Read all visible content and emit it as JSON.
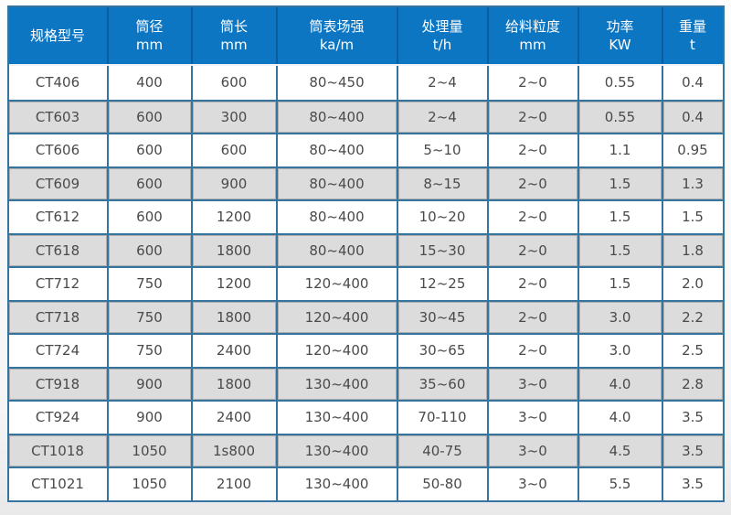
{
  "table": {
    "name": "specification-table",
    "columns": [
      {
        "label": "规格型号",
        "unit": ""
      },
      {
        "label": "筒径",
        "unit": "mm"
      },
      {
        "label": "筒长",
        "unit": "mm"
      },
      {
        "label": "筒表场强",
        "unit": "ka/m"
      },
      {
        "label": "处理量",
        "unit": "t/h"
      },
      {
        "label": "给料粒度",
        "unit": "mm"
      },
      {
        "label": "功率",
        "unit": "KW"
      },
      {
        "label": "重量",
        "unit": "t"
      }
    ],
    "rows": [
      [
        "CT406",
        "400",
        "600",
        "80~450",
        "2~4",
        "2~0",
        "0.55",
        "0.4"
      ],
      [
        "CT603",
        "600",
        "300",
        "80~400",
        "2~4",
        "2~0",
        "0.55",
        "0.4"
      ],
      [
        "CT606",
        "600",
        "600",
        "80~400",
        "5~10",
        "2~0",
        "1.1",
        "0.95"
      ],
      [
        "CT609",
        "600",
        "900",
        "80~400",
        "8~15",
        "2~0",
        "1.5",
        "1.3"
      ],
      [
        "CT612",
        "600",
        "1200",
        "80~400",
        "10~20",
        "2~0",
        "1.5",
        "1.5"
      ],
      [
        "CT618",
        "600",
        "1800",
        "80~400",
        "15~30",
        "2~0",
        "1.5",
        "1.8"
      ],
      [
        "CT712",
        "750",
        "1200",
        "120~400",
        "12~25",
        "2~0",
        "1.5",
        "2.0"
      ],
      [
        "CT718",
        "750",
        "1800",
        "120~400",
        "30~45",
        "2~0",
        "3.0",
        "2.2"
      ],
      [
        "CT724",
        "750",
        "2400",
        "120~400",
        "30~65",
        "2~0",
        "3.0",
        "2.5"
      ],
      [
        "CT918",
        "900",
        "1800",
        "130~400",
        "35~60",
        "3~0",
        "4.0",
        "2.8"
      ],
      [
        "CT924",
        "900",
        "2400",
        "130~400",
        "70-110",
        "3~0",
        "4.0",
        "3.5"
      ],
      [
        "CT1018",
        "1050",
        "1s800",
        "130~400",
        "40-75",
        "3~0",
        "4.5",
        "3.5"
      ],
      [
        "CT1021",
        "1050",
        "2100",
        "130~400",
        "50-80",
        "3~0",
        "5.5",
        "3.5"
      ]
    ],
    "colors": {
      "header_bg": "#0d76c2",
      "header_separator": "#0a5c9c",
      "header_text": "#ffffff",
      "grid_border": "#35749f",
      "row_bg": "#ffffff",
      "alt_row_bg": "#dcdcdc",
      "alt_row_hairline": "#aeaeae",
      "cell_text": "#4a4a4a"
    }
  }
}
